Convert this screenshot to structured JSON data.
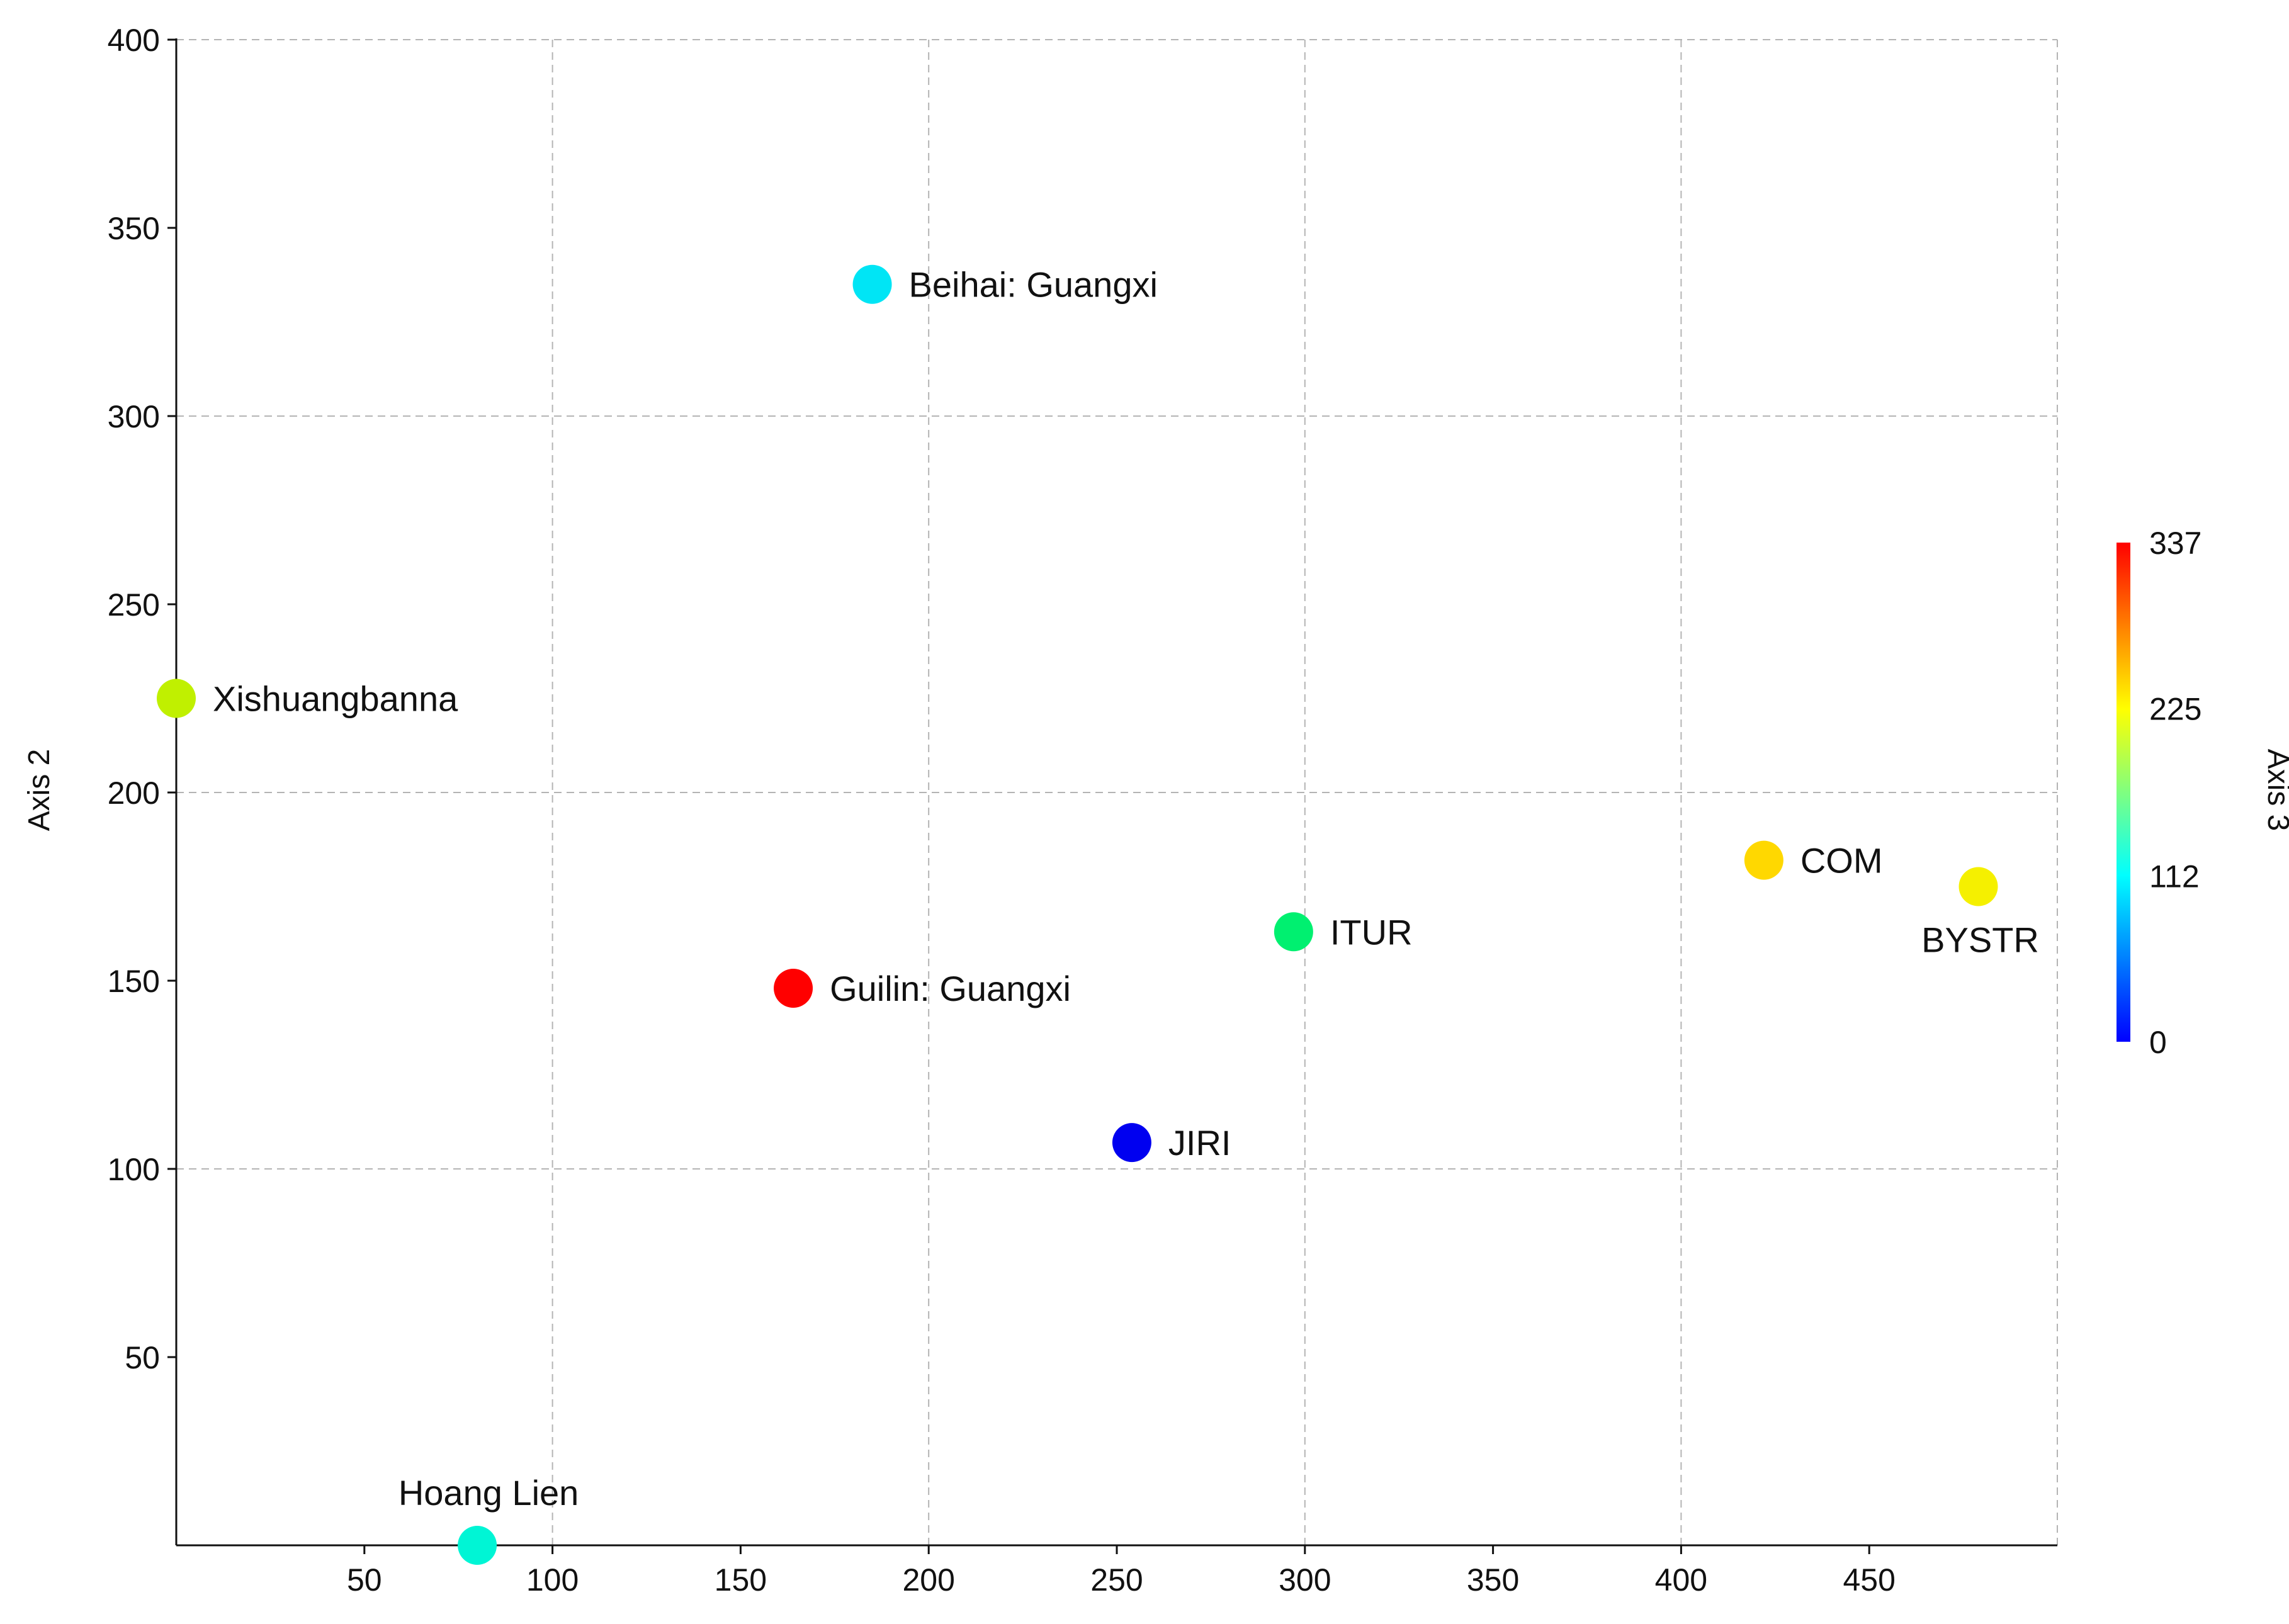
{
  "chart_data": {
    "type": "scatter",
    "title": "",
    "xlabel": "",
    "ylabel": "Axis 2",
    "colorbar_label": "Axis 3",
    "xlim": [
      0,
      500
    ],
    "ylim": [
      0,
      400
    ],
    "x_ticks": [
      50,
      100,
      150,
      200,
      250,
      300,
      350,
      400,
      450
    ],
    "y_ticks": [
      50,
      100,
      150,
      200,
      250,
      300,
      350,
      400
    ],
    "grid": true,
    "colorbar": {
      "min": 0,
      "max": 337,
      "ticks": [
        0,
        112,
        225,
        337
      ],
      "colormap": [
        "#0000ff",
        "#00ffff",
        "#ffff00",
        "#ff0000"
      ]
    },
    "points": [
      {
        "label": "Beihai: Guangxi",
        "x": 185,
        "y": 335,
        "z": 105,
        "color": "#00e5f5",
        "label_pos": "right"
      },
      {
        "label": "Xishuangbanna",
        "x": 0,
        "y": 225,
        "z": 200,
        "color": "#c0f000",
        "label_pos": "right"
      },
      {
        "label": "COM",
        "x": 422,
        "y": 182,
        "z": 250,
        "color": "#ffd800",
        "label_pos": "right"
      },
      {
        "label": "BYSTR",
        "x": 479,
        "y": 175,
        "z": 235,
        "color": "#f5f000",
        "label_pos": "below"
      },
      {
        "label": "ITUR",
        "x": 297,
        "y": 163,
        "z": 145,
        "color": "#00f070",
        "label_pos": "right"
      },
      {
        "label": "Guilin: Guangxi",
        "x": 164,
        "y": 148,
        "z": 337,
        "color": "#ff0000",
        "label_pos": "right"
      },
      {
        "label": "JIRI",
        "x": 254,
        "y": 107,
        "z": 0,
        "color": "#0000f0",
        "label_pos": "right"
      },
      {
        "label": "Hoang Lien",
        "x": 80,
        "y": 0,
        "z": 120,
        "color": "#00f5d5",
        "label_pos": "above"
      }
    ]
  }
}
